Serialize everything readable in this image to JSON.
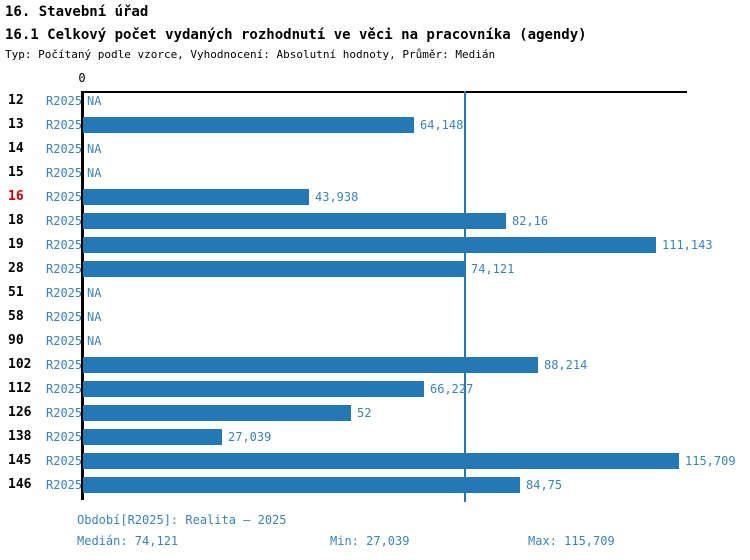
{
  "header": {
    "title": "16. Stavební úřad",
    "subtitle": "16.1 Celkový počet vydaných rozhodnutí ve věci na pracovníka (agendy)",
    "meta": "Typ: Počítaný podle vzorce, Vyhodnocení: Absolutní hodnoty, Průměr: Medián"
  },
  "chart_data": {
    "type": "bar",
    "orientation": "horizontal",
    "title": "16.1 Celkový počet vydaných rozhodnutí ve věci na pracovníka (agendy)",
    "xlabel": "",
    "ylabel": "",
    "xlim": [
      0,
      117
    ],
    "grid": false,
    "axis_zero_label": "0",
    "categories": [
      "12",
      "13",
      "14",
      "15",
      "16",
      "18",
      "19",
      "28",
      "51",
      "58",
      "90",
      "102",
      "112",
      "126",
      "138",
      "145",
      "146"
    ],
    "series": [
      {
        "name": "R2025",
        "values": [
          null,
          64.148,
          null,
          null,
          43.938,
          82.16,
          111.143,
          74.121,
          null,
          null,
          null,
          88.214,
          66.227,
          52,
          27.039,
          115.709,
          84.75
        ],
        "labels": [
          "NA",
          "64,148",
          "NA",
          "NA",
          "43,938",
          "82,16",
          "111,143",
          "74,121",
          "NA",
          "NA",
          "NA",
          "88,214",
          "66,227",
          "52",
          "27,039",
          "115,709",
          "84,75"
        ]
      }
    ],
    "highlighted_category": "16",
    "median_line_value": 74.121,
    "colors": {
      "bar": "#2478b4",
      "text": "#3a82bc",
      "highlight": "#cc0000"
    }
  },
  "footer": {
    "period": "Období[R2025]: Realita – 2025",
    "median": "Medián: 74,121",
    "min": "Min: 27,039",
    "max": "Max: 115,709"
  }
}
